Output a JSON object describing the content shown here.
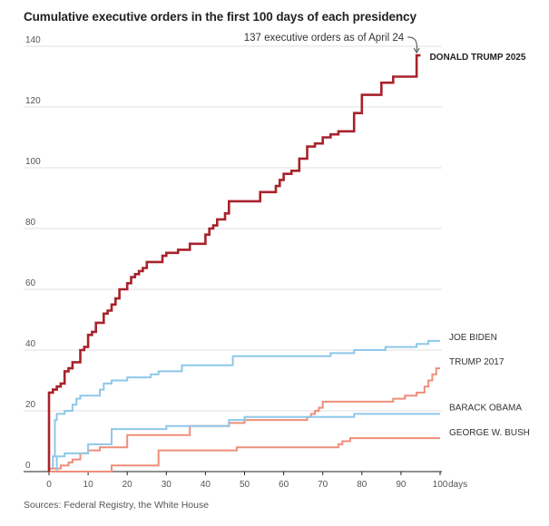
{
  "chart_data": {
    "type": "line",
    "step": true,
    "title": "Cumulative executive orders in the first 100 days of each presidency",
    "source": "Sources: Federal Registry, the White House",
    "xlabel": "days",
    "ylabel": "",
    "xlim": [
      0,
      100
    ],
    "ylim": [
      0,
      140
    ],
    "xticks": [
      0,
      10,
      20,
      30,
      40,
      50,
      60,
      70,
      80,
      90,
      100
    ],
    "xtick_labels": [
      "0",
      "10",
      "20",
      "30",
      "40",
      "50",
      "60",
      "70",
      "80",
      "90",
      "100"
    ],
    "xunit": "days",
    "yticks": [
      0,
      20,
      40,
      60,
      80,
      100,
      120,
      140
    ],
    "ytick_labels": [
      "0",
      "20",
      "40",
      "60",
      "80",
      "100",
      "120",
      "140"
    ],
    "grid": true,
    "annotation": {
      "text": "137 executive orders as of April 24",
      "x": 94,
      "y": 137
    },
    "series": [
      {
        "name": "DONALD TRUMP 2025",
        "color": "#a8222b",
        "highlight": true,
        "points": [
          [
            0,
            0
          ],
          [
            0,
            26
          ],
          [
            1,
            26
          ],
          [
            1,
            27
          ],
          [
            2,
            27
          ],
          [
            2,
            28
          ],
          [
            3,
            28
          ],
          [
            3,
            29
          ],
          [
            4,
            29
          ],
          [
            4,
            33
          ],
          [
            5,
            33
          ],
          [
            5,
            34
          ],
          [
            6,
            34
          ],
          [
            6,
            36
          ],
          [
            8,
            36
          ],
          [
            8,
            40
          ],
          [
            9,
            40
          ],
          [
            9,
            41
          ],
          [
            10,
            41
          ],
          [
            10,
            45
          ],
          [
            11,
            45
          ],
          [
            11,
            46
          ],
          [
            12,
            46
          ],
          [
            12,
            49
          ],
          [
            14,
            49
          ],
          [
            14,
            52
          ],
          [
            15,
            52
          ],
          [
            15,
            53
          ],
          [
            16,
            53
          ],
          [
            16,
            55
          ],
          [
            17,
            55
          ],
          [
            17,
            57
          ],
          [
            18,
            57
          ],
          [
            18,
            60
          ],
          [
            20,
            60
          ],
          [
            20,
            62
          ],
          [
            21,
            62
          ],
          [
            21,
            64
          ],
          [
            22,
            64
          ],
          [
            22,
            65
          ],
          [
            23,
            65
          ],
          [
            23,
            66
          ],
          [
            24,
            66
          ],
          [
            24,
            67
          ],
          [
            25,
            67
          ],
          [
            25,
            69
          ],
          [
            29,
            69
          ],
          [
            29,
            71
          ],
          [
            30,
            71
          ],
          [
            30,
            72
          ],
          [
            33,
            72
          ],
          [
            33,
            73
          ],
          [
            36,
            73
          ],
          [
            36,
            75
          ],
          [
            40,
            75
          ],
          [
            40,
            78
          ],
          [
            41,
            78
          ],
          [
            41,
            80
          ],
          [
            42,
            80
          ],
          [
            42,
            81
          ],
          [
            43,
            81
          ],
          [
            43,
            83
          ],
          [
            45,
            83
          ],
          [
            45,
            85
          ],
          [
            46,
            85
          ],
          [
            46,
            89
          ],
          [
            54,
            89
          ],
          [
            54,
            92
          ],
          [
            58,
            92
          ],
          [
            58,
            94
          ],
          [
            59,
            94
          ],
          [
            59,
            96
          ],
          [
            60,
            96
          ],
          [
            60,
            98
          ],
          [
            62,
            98
          ],
          [
            62,
            99
          ],
          [
            64,
            99
          ],
          [
            64,
            103
          ],
          [
            66,
            103
          ],
          [
            66,
            107
          ],
          [
            68,
            107
          ],
          [
            68,
            108
          ],
          [
            70,
            108
          ],
          [
            70,
            110
          ],
          [
            72,
            110
          ],
          [
            72,
            111
          ],
          [
            74,
            111
          ],
          [
            74,
            112
          ],
          [
            78,
            112
          ],
          [
            78,
            118
          ],
          [
            80,
            118
          ],
          [
            80,
            124
          ],
          [
            85,
            124
          ],
          [
            85,
            128
          ],
          [
            88,
            128
          ],
          [
            88,
            130
          ],
          [
            94,
            130
          ],
          [
            94,
            137
          ],
          [
            95,
            137
          ]
        ]
      },
      {
        "name": "JOE BIDEN",
        "color": "#8ec8ea",
        "points": [
          [
            0,
            0
          ],
          [
            0,
            1
          ],
          [
            1,
            1
          ],
          [
            1,
            5
          ],
          [
            1.5,
            5
          ],
          [
            1.5,
            17
          ],
          [
            2,
            17
          ],
          [
            2,
            19
          ],
          [
            4,
            19
          ],
          [
            4,
            20
          ],
          [
            6,
            20
          ],
          [
            6,
            22
          ],
          [
            7,
            22
          ],
          [
            7,
            24
          ],
          [
            8,
            24
          ],
          [
            8,
            25
          ],
          [
            13,
            25
          ],
          [
            13,
            27
          ],
          [
            14,
            27
          ],
          [
            14,
            29
          ],
          [
            16,
            29
          ],
          [
            16,
            30
          ],
          [
            20,
            30
          ],
          [
            20,
            31
          ],
          [
            26,
            31
          ],
          [
            26,
            32
          ],
          [
            28,
            32
          ],
          [
            28,
            33
          ],
          [
            34,
            33
          ],
          [
            34,
            35
          ],
          [
            47,
            35
          ],
          [
            47,
            38
          ],
          [
            72,
            38
          ],
          [
            72,
            39
          ],
          [
            78,
            39
          ],
          [
            78,
            40
          ],
          [
            86,
            40
          ],
          [
            86,
            41
          ],
          [
            94,
            41
          ],
          [
            94,
            42
          ],
          [
            97,
            42
          ],
          [
            97,
            43
          ],
          [
            100,
            43
          ]
        ]
      },
      {
        "name": "TRUMP 2017",
        "color": "#ef8e7a",
        "points": [
          [
            0,
            0
          ],
          [
            0,
            1
          ],
          [
            3,
            1
          ],
          [
            3,
            2
          ],
          [
            5,
            2
          ],
          [
            5,
            3
          ],
          [
            6,
            3
          ],
          [
            6,
            4
          ],
          [
            8,
            4
          ],
          [
            8,
            6
          ],
          [
            10,
            6
          ],
          [
            10,
            7
          ],
          [
            13,
            7
          ],
          [
            13,
            8
          ],
          [
            20,
            8
          ],
          [
            20,
            12
          ],
          [
            36,
            12
          ],
          [
            36,
            15
          ],
          [
            46,
            15
          ],
          [
            46,
            16
          ],
          [
            50,
            16
          ],
          [
            50,
            17
          ],
          [
            66,
            17
          ],
          [
            66,
            18
          ],
          [
            67,
            18
          ],
          [
            67,
            19
          ],
          [
            68,
            19
          ],
          [
            68,
            20
          ],
          [
            69,
            20
          ],
          [
            69,
            21
          ],
          [
            70,
            21
          ],
          [
            70,
            23
          ],
          [
            88,
            23
          ],
          [
            88,
            24
          ],
          [
            91,
            24
          ],
          [
            91,
            25
          ],
          [
            94,
            25
          ],
          [
            94,
            26
          ],
          [
            96,
            26
          ],
          [
            96,
            28
          ],
          [
            97,
            28
          ],
          [
            97,
            30
          ],
          [
            98,
            30
          ],
          [
            98,
            32
          ],
          [
            99,
            32
          ],
          [
            99,
            34
          ],
          [
            100,
            34
          ]
        ]
      },
      {
        "name": "BARACK OBAMA",
        "color": "#8ec8ea",
        "points": [
          [
            0,
            0
          ],
          [
            2,
            0
          ],
          [
            2,
            5
          ],
          [
            4,
            5
          ],
          [
            4,
            6
          ],
          [
            10,
            6
          ],
          [
            10,
            9
          ],
          [
            16,
            9
          ],
          [
            16,
            14
          ],
          [
            30,
            14
          ],
          [
            30,
            15
          ],
          [
            46,
            15
          ],
          [
            46,
            17
          ],
          [
            50,
            17
          ],
          [
            50,
            18
          ],
          [
            78,
            18
          ],
          [
            78,
            19
          ],
          [
            100,
            19
          ]
        ]
      },
      {
        "name": "GEORGE W. BUSH",
        "color": "#ef8e7a",
        "points": [
          [
            0,
            0
          ],
          [
            16,
            0
          ],
          [
            16,
            2
          ],
          [
            28,
            2
          ],
          [
            28,
            7
          ],
          [
            48,
            7
          ],
          [
            48,
            8
          ],
          [
            74,
            8
          ],
          [
            74,
            9
          ],
          [
            75,
            9
          ],
          [
            75,
            10
          ],
          [
            77,
            10
          ],
          [
            77,
            11
          ],
          [
            100,
            11
          ]
        ]
      }
    ]
  }
}
